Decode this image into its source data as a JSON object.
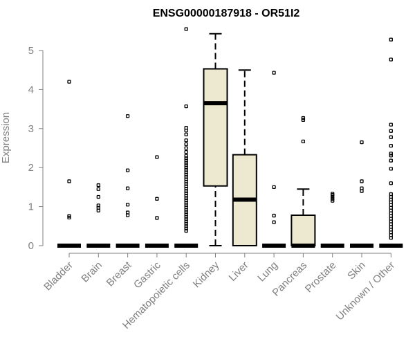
{
  "chart_data": {
    "type": "box",
    "title": "ENSG00000187918 - OR51I2",
    "xlabel": "",
    "ylabel": "Expression",
    "ylim": [
      0,
      5.6
    ],
    "yticks": [
      0,
      1,
      2,
      3,
      4,
      5
    ],
    "box_fill": "#EDE8D0",
    "categories": [
      "Bladder",
      "Brain",
      "Breast",
      "Gastric",
      "Hematopoietic cells",
      "Kidney",
      "Liver",
      "Lung",
      "Pancreas",
      "Prostate",
      "Skin",
      "Unknown / Other"
    ],
    "boxes": [
      {
        "name": "Bladder",
        "min": 0,
        "q1": 0,
        "median": 0,
        "q3": 0,
        "max": 0,
        "outliers": [
          0.72,
          0.76,
          1.65,
          4.2
        ]
      },
      {
        "name": "Brain",
        "min": 0,
        "q1": 0,
        "median": 0,
        "q3": 0,
        "max": 0,
        "outliers": [
          0.9,
          0.97,
          1.03,
          1.25,
          1.45,
          1.55
        ]
      },
      {
        "name": "Breast",
        "min": 0,
        "q1": 0,
        "median": 0,
        "q3": 0,
        "max": 0,
        "outliers": [
          0.78,
          0.85,
          1.05,
          1.47,
          1.93,
          3.32
        ]
      },
      {
        "name": "Gastric",
        "min": 0,
        "q1": 0,
        "median": 0,
        "q3": 0,
        "max": 0,
        "outliers": [
          0.71,
          1.2,
          2.27
        ]
      },
      {
        "name": "Hematopoietic cells",
        "min": 0,
        "q1": 0,
        "median": 0,
        "q3": 0,
        "max": 0,
        "outliers": [
          0.38,
          0.44,
          0.5,
          0.56,
          0.62,
          0.68,
          0.74,
          0.8,
          0.86,
          0.92,
          0.98,
          1.04,
          1.1,
          1.16,
          1.22,
          1.28,
          1.34,
          1.4,
          1.46,
          1.52,
          1.58,
          1.64,
          1.7,
          1.76,
          1.82,
          1.88,
          1.94,
          2.0,
          2.06,
          2.12,
          2.18,
          2.24,
          2.3,
          2.4,
          2.5,
          2.6,
          2.7,
          2.85,
          2.95,
          3.02,
          3.57,
          5.55
        ]
      },
      {
        "name": "Kidney",
        "min": 0,
        "q1": 1.53,
        "median": 3.65,
        "q3": 4.53,
        "max": 5.43,
        "outliers": []
      },
      {
        "name": "Liver",
        "min": 0,
        "q1": 0,
        "median": 1.18,
        "q3": 2.33,
        "max": 4.5,
        "outliers": []
      },
      {
        "name": "Lung",
        "min": 0,
        "q1": 0,
        "median": 0,
        "q3": 0,
        "max": 0,
        "outliers": [
          0.6,
          0.77,
          1.5,
          4.43
        ]
      },
      {
        "name": "Pancreas",
        "min": 0,
        "q1": 0,
        "median": 0,
        "q3": 0.78,
        "max": 1.45,
        "outliers": [
          2.67,
          3.22,
          3.27
        ]
      },
      {
        "name": "Prostate",
        "min": 0,
        "q1": 0,
        "median": 0,
        "q3": 0,
        "max": 0,
        "outliers": [
          1.15,
          1.2,
          1.25,
          1.3,
          1.33
        ]
      },
      {
        "name": "Skin",
        "min": 0,
        "q1": 0,
        "median": 0,
        "q3": 0,
        "max": 0,
        "outliers": [
          1.4,
          1.47,
          1.65,
          2.65
        ]
      },
      {
        "name": "Unknown / Other",
        "min": 0,
        "q1": 0,
        "median": 0,
        "q3": 0,
        "max": 0,
        "outliers": [
          0.2,
          0.27,
          0.34,
          0.41,
          0.48,
          0.55,
          0.62,
          0.69,
          0.76,
          0.83,
          0.9,
          0.97,
          1.04,
          1.11,
          1.18,
          1.25,
          1.32,
          1.6,
          1.97,
          2.18,
          2.31,
          2.36,
          2.56,
          2.78,
          2.94,
          3.1,
          4.77,
          5.28
        ]
      }
    ]
  }
}
